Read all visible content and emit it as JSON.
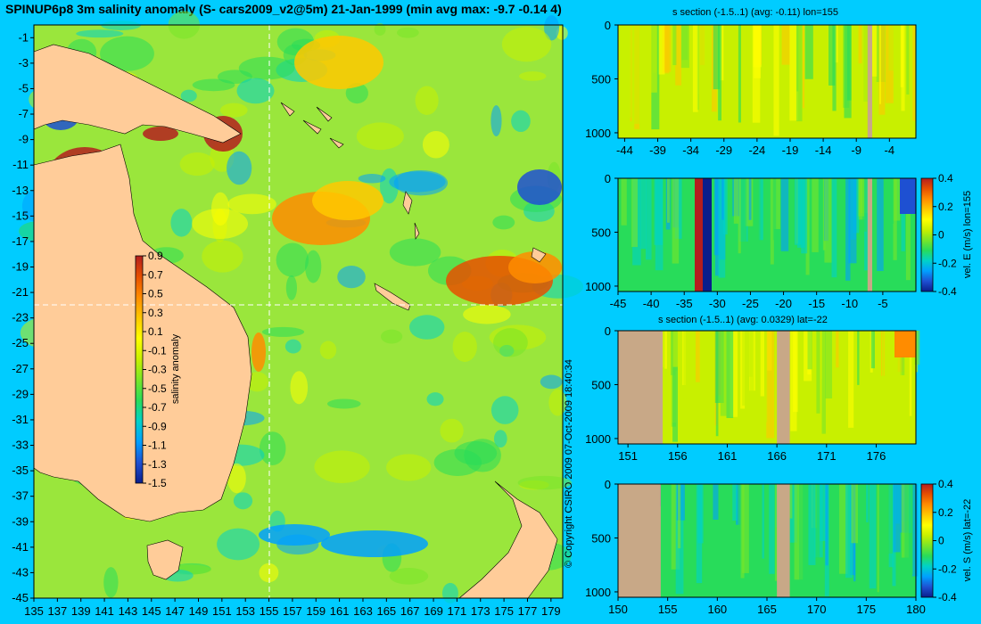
{
  "main_title": "SPINUP6p8 3m salinity anomaly (S- cars2009_v2@5m) 21-Jan-1999 (min avg max: -9.7 -0.14 4)",
  "copyright": "© Copyright CSIRO 2009   07-Oct-2009 18:40:34",
  "colors": {
    "background": "#00ccff",
    "land": "#ffcc99",
    "section_land": "#c8a887",
    "crosshair": "#ffffff"
  },
  "colormap": [
    "#0a1e8c",
    "#1e50d2",
    "#00a0ff",
    "#00d2c8",
    "#28dc5a",
    "#78e628",
    "#c8f000",
    "#ffff00",
    "#ffc800",
    "#ff8c00",
    "#e65000",
    "#b41e1e"
  ],
  "chart_data": [
    {
      "id": "map",
      "type": "heatmap",
      "title": "SPINUP6p8 3m salinity anomaly (S- cars2009_v2@5m) 21-Jan-1999",
      "x_ticks": [
        135,
        137,
        139,
        141,
        143,
        145,
        147,
        149,
        151,
        153,
        155,
        157,
        159,
        161,
        163,
        165,
        167,
        169,
        171,
        173,
        175,
        177,
        179
      ],
      "y_ticks": [
        -1,
        -3,
        -5,
        -7,
        -9,
        -11,
        -13,
        -15,
        -17,
        -19,
        -21,
        -23,
        -25,
        -27,
        -29,
        -31,
        -33,
        -35,
        -37,
        -39,
        -41,
        -43,
        -45
      ],
      "xlim": [
        135,
        180
      ],
      "ylim": [
        -45,
        0
      ],
      "section_lon": 155,
      "section_lat": -22,
      "colorbar": {
        "label": "salinity anomaly",
        "ticks": [
          "0.9",
          "0.7",
          "0.5",
          "0.3",
          "0.1",
          "-0.1",
          "-0.3",
          "-0.5",
          "-0.7",
          "-0.9",
          "-1.1",
          "-1.3",
          "-1.5"
        ],
        "range": [
          -1.5,
          0.9
        ]
      },
      "stats": {
        "min": -9.7,
        "avg": -0.14,
        "max": 4
      }
    },
    {
      "id": "s-section-lon",
      "type": "heatmap",
      "title": "s section (-1.5..1) (avg: -0.11) lon=155",
      "x_ticks": [
        "-44",
        "-39",
        "-34",
        "-29",
        "-24",
        "-19",
        "-14",
        "-9",
        "-4"
      ],
      "y_ticks": [
        "0",
        "500",
        "1000"
      ],
      "xlim": [
        -45,
        0
      ],
      "ylim": [
        1050,
        0
      ]
    },
    {
      "id": "vel-e-section",
      "type": "heatmap",
      "title": "",
      "x_ticks": [
        "-45",
        "-40",
        "-35",
        "-30",
        "-25",
        "-20",
        "-15",
        "-10",
        "-5"
      ],
      "y_ticks": [
        "0",
        "500",
        "1000"
      ],
      "xlim": [
        -45,
        0
      ],
      "ylim": [
        1050,
        0
      ],
      "colorbar": {
        "label": "vel. E (m/s) lon=155",
        "ticks": [
          "0.4",
          "0.2",
          "0",
          "-0.2",
          "-0.4"
        ],
        "range": [
          -0.4,
          0.4
        ]
      }
    },
    {
      "id": "s-section-lat",
      "type": "heatmap",
      "title": "s section (-1.5..1) (avg: 0.0329) lat=-22",
      "x_ticks": [
        "151",
        "156",
        "161",
        "166",
        "171",
        "176"
      ],
      "y_ticks": [
        "0",
        "500",
        "1000"
      ],
      "xlim": [
        150,
        180
      ],
      "ylim": [
        1050,
        0
      ]
    },
    {
      "id": "vel-s-section",
      "type": "heatmap",
      "title": "",
      "x_ticks": [
        "150",
        "155",
        "160",
        "165",
        "170",
        "175",
        "180"
      ],
      "y_ticks": [
        "0",
        "500",
        "1000"
      ],
      "xlim": [
        150,
        180
      ],
      "ylim": [
        1050,
        0
      ],
      "colorbar": {
        "label": "vel. S (m/s) lat=-22",
        "ticks": [
          "0.4",
          "0.2",
          "0",
          "-0.2",
          "-0.4"
        ],
        "range": [
          -0.4,
          0.4
        ]
      }
    }
  ]
}
